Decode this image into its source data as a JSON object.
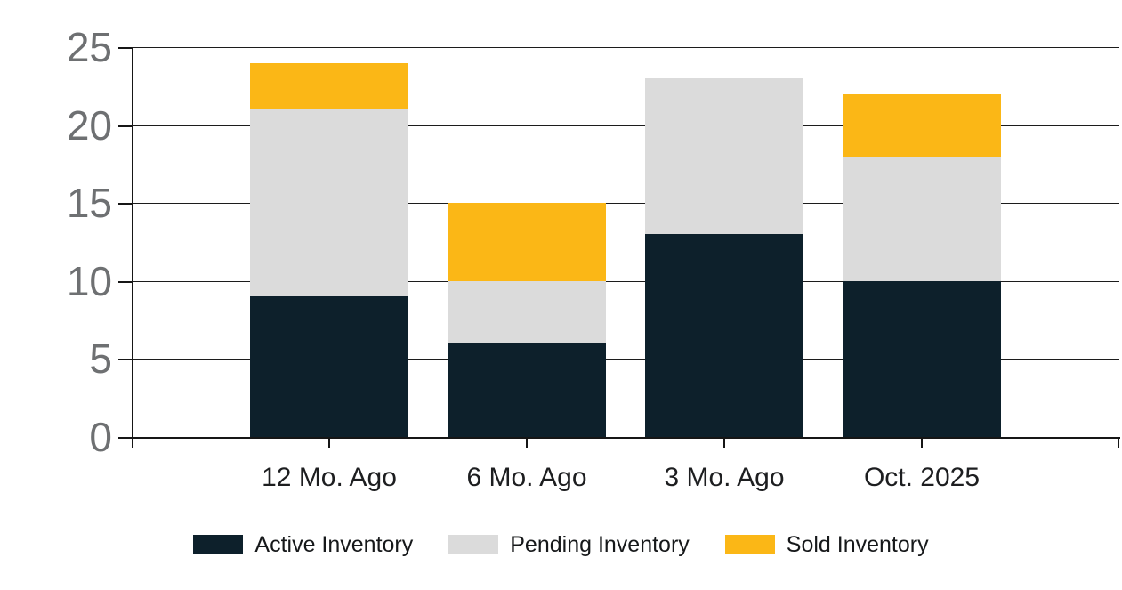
{
  "chart_data": {
    "type": "bar",
    "stacked": true,
    "title": "",
    "xlabel": "",
    "ylabel": "",
    "categories": [
      "12 Mo. Ago",
      "6 Mo. Ago",
      "3 Mo. Ago",
      "Oct. 2025"
    ],
    "series": [
      {
        "name": "Active Inventory",
        "color": "#0d202b",
        "values": [
          9,
          6,
          13,
          10
        ]
      },
      {
        "name": "Pending Inventory",
        "color": "#dbdbdb",
        "values": [
          12,
          4,
          10,
          8
        ]
      },
      {
        "name": "Sold Inventory",
        "color": "#fbb716",
        "values": [
          3,
          5,
          0,
          4
        ]
      }
    ],
    "ylim": [
      0,
      25
    ],
    "yticks": [
      0,
      5,
      10,
      15,
      20,
      25
    ],
    "grid": true,
    "legend_position": "bottom"
  },
  "colors": {
    "background": "#ffffff",
    "axis_line": "#161616",
    "gridline": "#1c1c1c",
    "y_tick_label": "#6e7072",
    "x_tick_label": "#1d1e20",
    "legend_text": "#16181a"
  }
}
